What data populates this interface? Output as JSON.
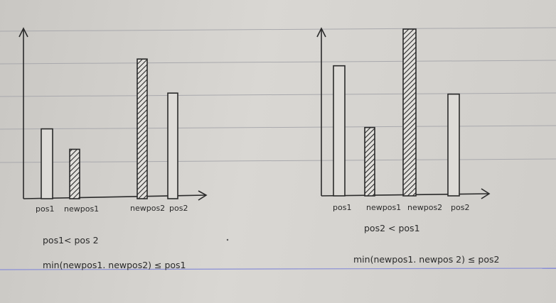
{
  "colors": {
    "ink": "#2a2a2a",
    "rule_line": "#a9a9ad",
    "margin_line": "#8a8fd6",
    "paper": "#d4d2ce"
  },
  "diagrams": [
    {
      "labels": [
        "pos1",
        "newpos1",
        "newpos2",
        "pos2"
      ],
      "bars": [
        {
          "label": "pos1",
          "value": 4.1,
          "hatched": false
        },
        {
          "label": "newpos1",
          "value": 2.9,
          "hatched": true
        },
        {
          "label": "newpos2",
          "value": 8.2,
          "hatched": true
        },
        {
          "label": "pos2",
          "value": 6.2,
          "hatched": false
        }
      ],
      "conditions": [
        "pos1< pos 2",
        "min(newpos1. newpos2) ≤ pos1"
      ]
    },
    {
      "labels": [
        "pos1",
        "newpos1",
        "newpos2",
        "pos2"
      ],
      "bars": [
        {
          "label": "pos1",
          "value": 7.8,
          "hatched": false
        },
        {
          "label": "newpos1",
          "value": 4.1,
          "hatched": true
        },
        {
          "label": "newpos2",
          "value": 10.0,
          "hatched": true
        },
        {
          "label": "pos2",
          "value": 6.1,
          "hatched": false
        }
      ],
      "conditions": [
        "pos2 < pos1",
        "min(newpos1. newpos 2) ≤ pos2"
      ]
    }
  ]
}
